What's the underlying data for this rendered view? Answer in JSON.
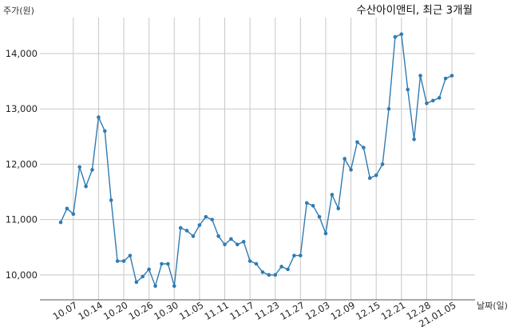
{
  "chart_data": {
    "type": "line",
    "title": "수산아이앤티, 최근 3개월",
    "ylabel": "주가(원)",
    "xlabel": "날짜(일)",
    "ylim": [
      9550,
      14650
    ],
    "yticks": [
      10000,
      11000,
      12000,
      13000,
      14000
    ],
    "ytick_labels": [
      "10,000",
      "11,000",
      "12,000",
      "13,000",
      "14,000"
    ],
    "grid": true,
    "line_color": "#2f7bb2",
    "xtick_labels": [
      "10.07",
      "10.14",
      "10.20",
      "10.26",
      "10.30",
      "11.05",
      "11.11",
      "11.17",
      "11.23",
      "11.27",
      "12.03",
      "12.09",
      "12.15",
      "12.21",
      "12.28",
      "21.01.05"
    ],
    "xtick_indices": [
      2,
      6,
      10,
      14,
      18,
      22,
      26,
      30,
      34,
      38,
      42,
      46,
      50,
      54,
      58,
      62
    ],
    "series": [
      {
        "values": [
          10950,
          11200,
          11100,
          11950,
          11600,
          11900,
          12850,
          12600,
          11350,
          10250,
          10250,
          10350,
          9870,
          9970,
          10100,
          9800,
          10200,
          10200,
          9800,
          10850,
          10800,
          10700,
          10900,
          11050,
          11000,
          10700,
          10550,
          10650,
          10550,
          10600,
          10250,
          10200,
          10050,
          10000,
          10000,
          10150,
          10100,
          10350,
          10350,
          11300,
          11250,
          11050,
          10750,
          11450,
          11200,
          12100,
          11900,
          12400,
          12300,
          11750,
          11800,
          12000,
          13000,
          14300,
          14350,
          13350,
          12450,
          13600,
          13100,
          13150,
          13200,
          13550,
          13600
        ]
      }
    ]
  }
}
